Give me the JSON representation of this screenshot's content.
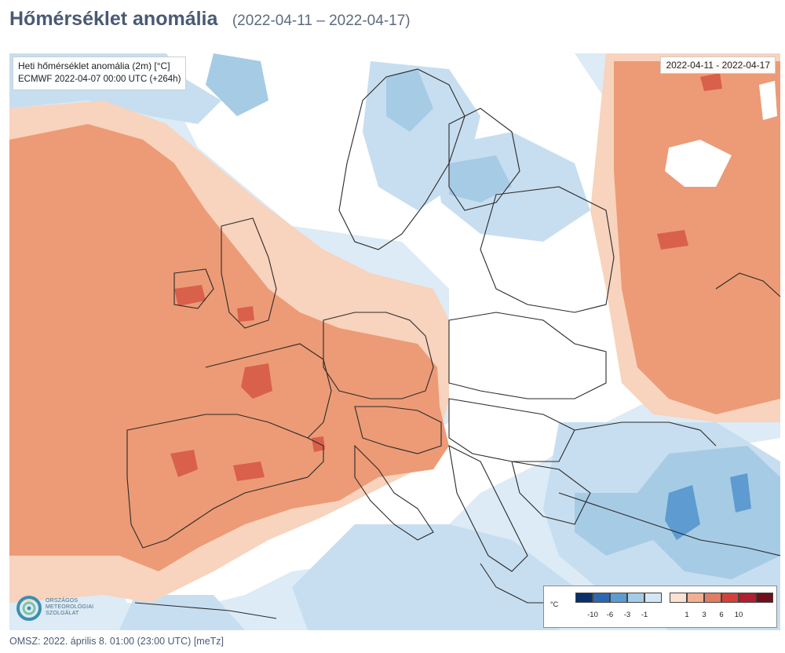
{
  "header": {
    "title": "Hőmérséklet anomália",
    "period": "(2022-04-11 – 2022-04-17)"
  },
  "map": {
    "info_line1": "Heti hőmérséklet anomália (2m) [°C]",
    "info_line2": "ECMWF 2022-04-07 00:00 UTC (+264h)",
    "date_range": "2022-04-11 - 2022-04-17",
    "colors": {
      "sea_base": "#dcebf5",
      "cold_1": "#d3e6f3",
      "cold_2": "#a6cbe5",
      "cold_3": "#5d9bd0",
      "warm_1": "#f8d3bd",
      "warm_2": "#ec9b76",
      "warm_3": "#d9604a",
      "border": "#2a2a2a"
    },
    "legend": {
      "unit": "°C",
      "cold_colors": [
        "#0b2f6b",
        "#2c68b1",
        "#5d9bd0",
        "#a6cbe5",
        "#d3e6f3"
      ],
      "cold_ticks": [
        "-10",
        "-6",
        "-3",
        "-1"
      ],
      "warm_colors": [
        "#fbe1d2",
        "#f2b093",
        "#e07d62",
        "#d3413a",
        "#b01f2d",
        "#6e0f1c"
      ],
      "warm_ticks": [
        "1",
        "3",
        "6",
        "10"
      ]
    },
    "logo": {
      "text_line1": "ORSZÁGOS",
      "text_line2": "METEOROLÓGIAI",
      "text_line3": "SZOLGÁLAT"
    }
  },
  "footer": {
    "text": "OMSZ: 2022. április 8. 01:00 (23:00  UTC)  [meTz]"
  }
}
